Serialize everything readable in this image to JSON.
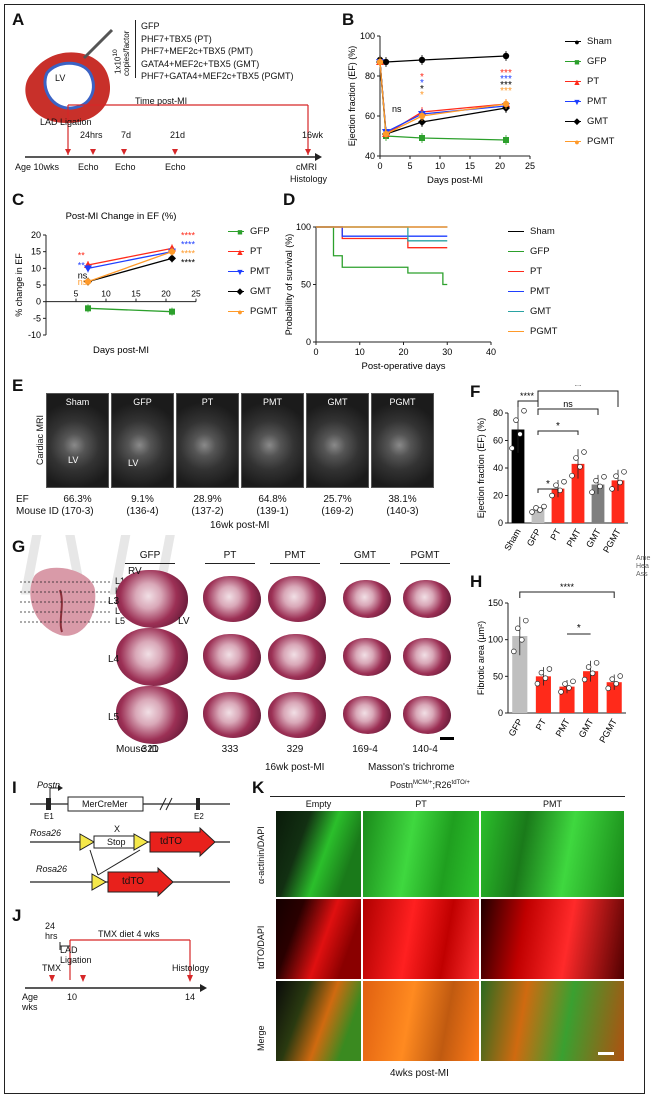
{
  "panels": {
    "A": "A",
    "B": "B",
    "C": "C",
    "D": "D",
    "E": "E",
    "F": "F",
    "G": "G",
    "H": "H",
    "I": "I",
    "J": "J",
    "K": "K"
  },
  "panelA": {
    "dose": "1x10",
    "dose_exp": "10",
    "dose_unit": "copies/factor",
    "constructs": [
      "GFP",
      "PHF7+TBX5 (PT)",
      "PHF7+MEF2c+TBX5 (PMT)",
      "GATA4+MEF2c+TBX5 (GMT)",
      "PHF7+GATA4+MEF2c+TBX5 (PGMT)"
    ],
    "heart_label": "LV",
    "time_post": "Time post-MI",
    "lad": "LAD Ligation",
    "age": "Age 10wks",
    "hrs": "24hrs",
    "d7": "7d",
    "d21": "21d",
    "wk16": "16wk",
    "echo": "Echo",
    "cmri": "cMRI",
    "histology": "Histology"
  },
  "legend_main": [
    {
      "name": "Sham",
      "color": "#000000",
      "marker": "●"
    },
    {
      "name": "GFP",
      "color": "#2ca02c",
      "marker": "■"
    },
    {
      "name": "PT",
      "color": "#ff2a1a",
      "marker": "▲"
    },
    {
      "name": "PMT",
      "color": "#1f3fff",
      "marker": "▼"
    },
    {
      "name": "GMT",
      "color": "#000000",
      "marker": "◆"
    },
    {
      "name": "PGMT",
      "color": "#ff9a2a",
      "marker": "●"
    }
  ],
  "chart_data": [
    {
      "type": "line",
      "panel": "B",
      "xlabel": "Days post-MI",
      "ylabel": "Ejection fraction (EF) (%)",
      "xlim": [
        0,
        25
      ],
      "ylim": [
        40,
        100
      ],
      "xticks": [
        0,
        5,
        10,
        15,
        20,
        25
      ],
      "yticks": [
        40,
        60,
        80,
        100
      ],
      "annotations": [
        "ns",
        "*",
        "***"
      ],
      "series": [
        {
          "name": "Sham",
          "color": "#000000",
          "x": [
            0,
            1,
            7,
            21
          ],
          "y": [
            88,
            87,
            88,
            90
          ]
        },
        {
          "name": "GFP",
          "color": "#2ca02c",
          "x": [
            0,
            1,
            7,
            21
          ],
          "y": [
            87,
            50,
            49,
            48
          ]
        },
        {
          "name": "PT",
          "color": "#ff2a1a",
          "x": [
            0,
            1,
            7,
            21
          ],
          "y": [
            87,
            51,
            62,
            66
          ]
        },
        {
          "name": "PMT",
          "color": "#1f3fff",
          "x": [
            0,
            1,
            7,
            21
          ],
          "y": [
            87,
            52,
            61,
            65
          ]
        },
        {
          "name": "GMT",
          "color": "#000000",
          "x": [
            0,
            1,
            7,
            21
          ],
          "y": [
            87,
            51,
            57,
            64
          ]
        },
        {
          "name": "PGMT",
          "color": "#ff9a2a",
          "x": [
            0,
            1,
            7,
            21
          ],
          "y": [
            87,
            51,
            60,
            66
          ]
        }
      ]
    },
    {
      "type": "line",
      "panel": "C",
      "title": "Post-MI Change in EF (%)",
      "xlabel": "Days post-MI",
      "ylabel": "% change in EF",
      "xlim": [
        0,
        25
      ],
      "ylim": [
        -10,
        20
      ],
      "xticks": [
        5,
        10,
        15,
        20,
        25
      ],
      "yticks": [
        -10,
        -5,
        0,
        5,
        10,
        15,
        20
      ],
      "annotations": [
        "**",
        "**",
        "ns",
        "ns",
        "****"
      ],
      "series": [
        {
          "name": "GFP",
          "color": "#2ca02c",
          "x": [
            7,
            21
          ],
          "y": [
            -2,
            -3
          ]
        },
        {
          "name": "PT",
          "color": "#ff2a1a",
          "x": [
            7,
            21
          ],
          "y": [
            11,
            16
          ]
        },
        {
          "name": "PMT",
          "color": "#1f3fff",
          "x": [
            7,
            21
          ],
          "y": [
            10,
            15
          ]
        },
        {
          "name": "GMT",
          "color": "#000000",
          "x": [
            7,
            21
          ],
          "y": [
            6,
            13
          ]
        },
        {
          "name": "PGMT",
          "color": "#ff9a2a",
          "x": [
            7,
            21
          ],
          "y": [
            6,
            15
          ]
        }
      ]
    },
    {
      "type": "line",
      "panel": "D",
      "xlabel": "Post-operative days",
      "ylabel": "Probability of survival (%)",
      "xlim": [
        0,
        40
      ],
      "ylim": [
        0,
        100
      ],
      "xticks": [
        0,
        10,
        20,
        30,
        40
      ],
      "yticks": [
        0,
        50,
        100
      ],
      "series": [
        {
          "name": "Sham",
          "color": "#000000",
          "x": [
            0,
            30
          ],
          "y": [
            100,
            100
          ]
        },
        {
          "name": "GFP",
          "color": "#2ca02c",
          "x": [
            0,
            4,
            4,
            6,
            6,
            21,
            21,
            29,
            29,
            30
          ],
          "y": [
            100,
            100,
            75,
            75,
            65,
            65,
            60,
            60,
            50,
            50
          ]
        },
        {
          "name": "PT",
          "color": "#ff2a1a",
          "x": [
            0,
            6,
            6,
            21,
            21,
            30
          ],
          "y": [
            100,
            100,
            90,
            90,
            82,
            82
          ]
        },
        {
          "name": "PMT",
          "color": "#1f3fff",
          "x": [
            0,
            6,
            6,
            30
          ],
          "y": [
            100,
            100,
            92,
            92
          ]
        },
        {
          "name": "GMT",
          "color": "#2aa3a3",
          "x": [
            0,
            21,
            21,
            30
          ],
          "y": [
            100,
            100,
            88,
            88
          ]
        },
        {
          "name": "PGMT",
          "color": "#ff9a2a",
          "x": [
            0,
            30
          ],
          "y": [
            100,
            100
          ]
        }
      ]
    },
    {
      "type": "bar",
      "panel": "F",
      "ylabel": "Ejection fraction (EF) (%)",
      "ylim": [
        0,
        80
      ],
      "yticks": [
        0,
        20,
        40,
        60,
        80
      ],
      "categories": [
        "Sham",
        "GFP",
        "PT",
        "PMT",
        "GMT",
        "PGMT"
      ],
      "values": [
        68,
        10,
        25,
        43,
        28,
        31
      ],
      "colors": [
        "#000000",
        "#bfbfbf",
        "#ff2a1a",
        "#ff2a1a",
        "#7f7f7f",
        "#ff2a1a"
      ],
      "annotations": [
        "****",
        "ns",
        "**",
        "*",
        "*"
      ]
    },
    {
      "type": "bar",
      "panel": "H",
      "ylabel": "Fibrotic area (µm²)",
      "ylim": [
        0,
        150
      ],
      "yticks": [
        0,
        50,
        100,
        150
      ],
      "categories": [
        "GFP",
        "PT",
        "PMT",
        "GMT",
        "PGMT"
      ],
      "values": [
        105,
        50,
        36,
        57,
        42
      ],
      "colors": [
        "#bfbfbf",
        "#ff2a1a",
        "#ff2a1a",
        "#ff2a1a",
        "#ff2a1a"
      ],
      "annotations": [
        "****",
        "*"
      ]
    }
  ],
  "panelE": {
    "row_label": "Cardiac MRI",
    "images": [
      "Sham",
      "GFP",
      "PT",
      "PMT",
      "GMT",
      "PGMT"
    ],
    "lv": "LV",
    "ef_label": "EF",
    "mouse_label": "Mouse ID",
    "ef": [
      "66.3%",
      "9.1%",
      "28.9%",
      "64.8%",
      "25.7%",
      "38.1%"
    ],
    "ids": [
      "(170-3)",
      "(136-4)",
      "(137-2)",
      "(139-1)",
      "(169-2)",
      "(140-3)"
    ],
    "caption": "16wk post-MI"
  },
  "panelG": {
    "levels": [
      "L1",
      "L2",
      "L3",
      "L4",
      "L5"
    ],
    "rows": [
      "L3",
      "L4",
      "L5"
    ],
    "groups": [
      "GFP",
      "PT",
      "PMT",
      "GMT",
      "PGMT"
    ],
    "rv": "RV",
    "lv": "LV",
    "mouse_label": "Mouse ID",
    "ids": [
      "321",
      "333",
      "329",
      "169-4",
      "140-4"
    ],
    "caption1": "16wk post-MI",
    "caption2": "Masson's trichrome"
  },
  "panelI": {
    "postn": "Postn",
    "mercremer": "MerCreMer",
    "e1": "E1",
    "e2": "E2",
    "rosa1": "Rosa26",
    "x": "X",
    "stop": "Stop",
    "tdto1": "tdTO",
    "rosa2": "Rosa26",
    "tdto2": "tdTO"
  },
  "panelJ": {
    "hrs": "24",
    "hrs2": "hrs",
    "diet": "TMX diet 4 wks",
    "tmx": "TMX",
    "lad": "LAD",
    "lig": "Ligation",
    "histology": "Histology",
    "age": "Age",
    "wks": "wks",
    "t10": "10",
    "t14": "14"
  },
  "panelK": {
    "header": "Postn",
    "hdr_sup1": "MCM/+",
    "hdr_mid": ";R26",
    "hdr_sup2": "tdTO/+",
    "cols": [
      "Empty",
      "PT",
      "PMT"
    ],
    "rows": [
      "α-actinin/DAPI",
      "tdTO/DAPI",
      "Merge"
    ],
    "caption": "4wks post-MI"
  },
  "margin_note": [
    "Ame",
    "Hea",
    "Ass"
  ],
  "colors": {
    "red": "#ff2a1a",
    "green": "#2ca02c",
    "blue": "#1f3fff",
    "orange": "#ff9a2a",
    "teal": "#2aa3a3"
  }
}
